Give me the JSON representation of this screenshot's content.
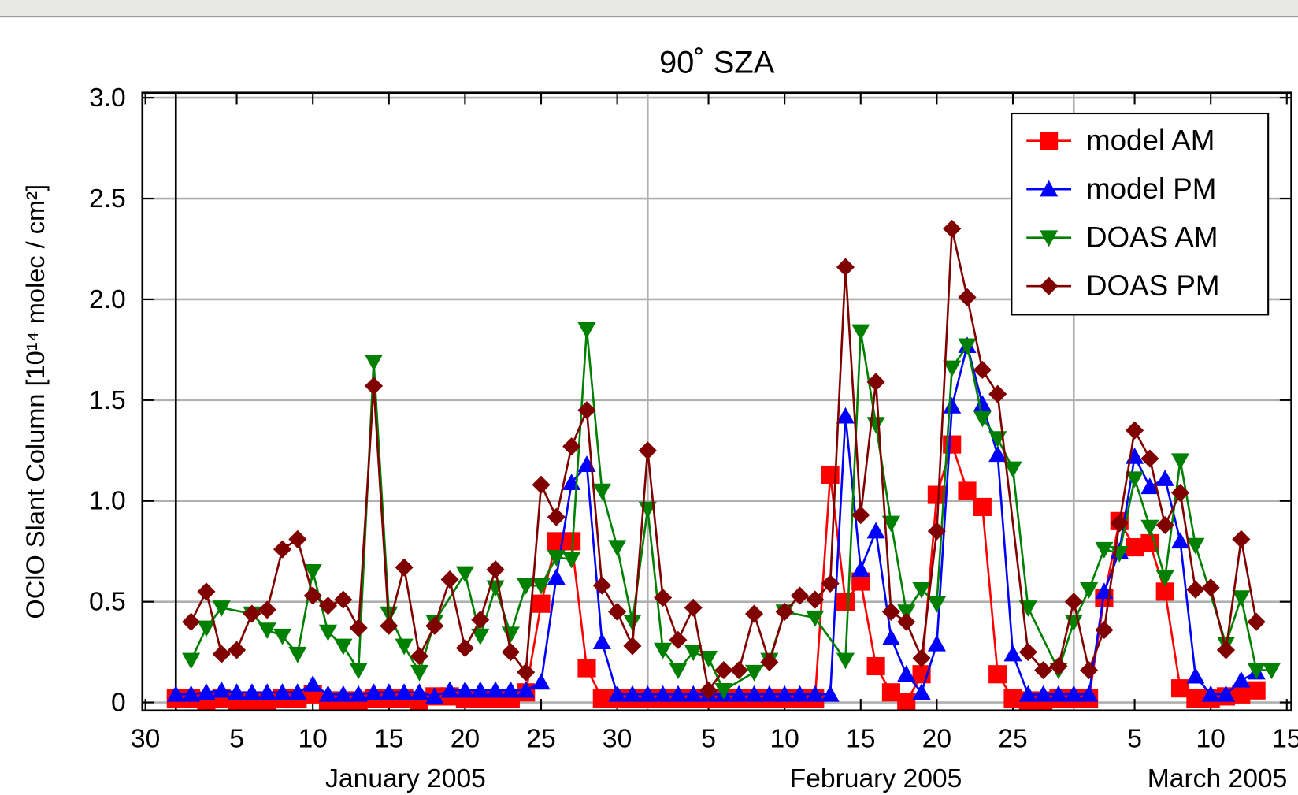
{
  "chart_data": {
    "type": "line",
    "title": "90˚ SZA",
    "y_label": "OClO Slant Column  [10¹⁴ molec / cm²]",
    "x_group_labels": [
      "January 2005",
      "February 2005",
      "March 2005"
    ],
    "xlim": [
      -1.2,
      74.3
    ],
    "ylim": [
      -0.04,
      3.025
    ],
    "xticks": [
      {
        "value": -1,
        "label": "30"
      },
      5,
      10,
      15,
      20,
      25,
      30,
      {
        "value": 36,
        "label": "5"
      },
      {
        "value": 41,
        "label": "10"
      },
      {
        "value": 46,
        "label": "15"
      },
      {
        "value": 51,
        "label": "20"
      },
      {
        "value": 56,
        "label": "25"
      },
      {
        "value": 64,
        "label": "5"
      },
      {
        "value": 69,
        "label": "10"
      },
      {
        "value": 74,
        "label": "15"
      }
    ],
    "yticks": [
      0,
      0.5,
      {
        "value": 1,
        "label": "1.0"
      },
      1.5,
      {
        "value": 2,
        "label": "2.0"
      },
      2.5,
      {
        "value": 3,
        "label": "3.0"
      }
    ],
    "grid": true,
    "x_grid": [
      32,
      60
    ],
    "x_reference_line": 1,
    "legend": "top-right",
    "series": [
      {
        "name": "model AM",
        "color": "#ff0000",
        "marker": "square",
        "x": [
          1,
          2,
          3,
          4,
          5,
          6,
          7,
          8,
          9,
          10,
          11,
          12,
          13,
          14,
          15,
          16,
          17,
          18,
          19,
          20,
          21,
          22,
          23,
          24,
          25,
          26,
          27,
          28,
          29,
          30,
          31,
          32,
          33,
          34,
          35,
          36,
          37,
          38,
          39,
          40,
          41,
          42,
          43,
          44,
          45,
          46,
          47,
          48,
          49,
          50,
          51,
          52,
          53,
          54,
          55,
          56,
          57,
          58,
          59,
          60,
          61,
          62,
          63,
          64,
          65,
          66,
          67,
          68,
          69,
          70,
          71,
          72
        ],
        "values": [
          0.02,
          0.02,
          0.01,
          0.02,
          0.01,
          0.01,
          0.01,
          0.02,
          0.02,
          0.04,
          0.01,
          0.01,
          0.01,
          0.02,
          0.02,
          0.02,
          0.01,
          0.03,
          0.03,
          0.02,
          0.02,
          0.02,
          0.02,
          0.05,
          0.49,
          0.8,
          0.8,
          0.17,
          0.02,
          0.02,
          0.02,
          0.02,
          0.02,
          0.02,
          0.02,
          0.02,
          0.02,
          0.02,
          0.02,
          0.02,
          0.02,
          0.02,
          0.02,
          1.13,
          0.5,
          0.6,
          0.18,
          0.05,
          0.0,
          0.14,
          1.03,
          1.28,
          1.05,
          0.97,
          0.14,
          0.02,
          0.01,
          0.01,
          0.02,
          0.02,
          0.02,
          0.52,
          0.9,
          0.77,
          0.79,
          0.55,
          0.07,
          0.02,
          0.02,
          0.03,
          0.04,
          0.06
        ]
      },
      {
        "name": "model PM",
        "color": "#0000ff",
        "marker": "triangle-up",
        "x": [
          1,
          2,
          3,
          4,
          5,
          6,
          7,
          8,
          9,
          10,
          11,
          12,
          13,
          14,
          15,
          16,
          17,
          18,
          19,
          20,
          21,
          22,
          23,
          24,
          25,
          26,
          27,
          28,
          29,
          30,
          31,
          32,
          33,
          34,
          35,
          36,
          37,
          38,
          39,
          40,
          41,
          42,
          43,
          44,
          45,
          46,
          47,
          48,
          49,
          50,
          51,
          52,
          53,
          54,
          55,
          56,
          57,
          58,
          59,
          60,
          61,
          62,
          63,
          64,
          65,
          66,
          67,
          68,
          69,
          70,
          71,
          72
        ],
        "values": [
          0.04,
          0.04,
          0.05,
          0.06,
          0.05,
          0.05,
          0.05,
          0.05,
          0.05,
          0.09,
          0.04,
          0.04,
          0.04,
          0.05,
          0.05,
          0.05,
          0.05,
          0.03,
          0.06,
          0.06,
          0.06,
          0.06,
          0.06,
          0.06,
          0.1,
          0.62,
          1.09,
          1.18,
          0.3,
          0.04,
          0.04,
          0.04,
          0.04,
          0.04,
          0.04,
          0.04,
          0.04,
          0.04,
          0.04,
          0.04,
          0.04,
          0.04,
          0.04,
          0.04,
          1.42,
          0.66,
          0.85,
          0.32,
          0.14,
          0.05,
          0.29,
          1.47,
          1.77,
          1.48,
          1.23,
          0.24,
          0.04,
          0.04,
          0.04,
          0.04,
          0.04,
          0.55,
          0.75,
          1.22,
          1.07,
          1.11,
          0.8,
          0.13,
          0.04,
          0.04,
          0.11,
          0.15
        ]
      },
      {
        "name": "DOAS AM",
        "color": "#008000",
        "marker": "triangle-down",
        "x": [
          2,
          3,
          4,
          6,
          7,
          8,
          9,
          10,
          11,
          12,
          13,
          14,
          15,
          16,
          17,
          18,
          20,
          21,
          22,
          23,
          24,
          25,
          26,
          27,
          28,
          29,
          30,
          31,
          32,
          33,
          34,
          35,
          36,
          37,
          39,
          40,
          41,
          43,
          45,
          46,
          47,
          48,
          49,
          50,
          51,
          52,
          53,
          54,
          55,
          56,
          57,
          59,
          60,
          61,
          62,
          63,
          64,
          65,
          66,
          67,
          68,
          70,
          71,
          72,
          73
        ],
        "values": [
          0.21,
          0.37,
          0.47,
          0.44,
          0.36,
          0.33,
          0.24,
          0.65,
          0.35,
          0.28,
          0.16,
          1.69,
          0.44,
          0.28,
          0.15,
          0.4,
          0.64,
          0.33,
          0.57,
          0.34,
          0.58,
          0.58,
          0.72,
          0.71,
          1.85,
          1.05,
          0.77,
          0.4,
          0.96,
          0.26,
          0.16,
          0.25,
          0.22,
          0.06,
          0.15,
          0.21,
          0.45,
          0.42,
          0.21,
          1.84,
          1.38,
          0.89,
          0.45,
          0.56,
          0.49,
          1.66,
          1.77,
          1.41,
          1.31,
          1.16,
          0.47,
          0.16,
          0.4,
          0.56,
          0.76,
          0.74,
          1.11,
          0.87,
          0.62,
          1.2,
          0.78,
          0.29,
          0.52,
          0.16,
          0.16
        ]
      },
      {
        "name": "DOAS PM",
        "color": "#800000",
        "marker": "diamond",
        "x": [
          2,
          3,
          4,
          5,
          6,
          7,
          8,
          9,
          10,
          11,
          12,
          13,
          14,
          15,
          16,
          17,
          18,
          19,
          20,
          21,
          22,
          23,
          24,
          25,
          26,
          27,
          28,
          29,
          30,
          31,
          32,
          33,
          34,
          35,
          36,
          37,
          38,
          39,
          40,
          41,
          42,
          43,
          44,
          45,
          46,
          47,
          48,
          49,
          50,
          51,
          52,
          53,
          54,
          55,
          57,
          58,
          59,
          60,
          61,
          62,
          63,
          64,
          65,
          66,
          67,
          68,
          69,
          70,
          71,
          72
        ],
        "values": [
          0.4,
          0.55,
          0.24,
          0.26,
          0.44,
          0.46,
          0.76,
          0.81,
          0.53,
          0.48,
          0.51,
          0.37,
          1.57,
          0.38,
          0.67,
          0.23,
          0.38,
          0.61,
          0.27,
          0.41,
          0.66,
          0.25,
          0.15,
          1.08,
          0.92,
          1.27,
          1.45,
          0.58,
          0.45,
          0.28,
          1.25,
          0.52,
          0.31,
          0.47,
          0.06,
          0.16,
          0.16,
          0.44,
          0.2,
          0.45,
          0.53,
          0.51,
          0.59,
          2.16,
          0.93,
          1.59,
          0.45,
          0.4,
          0.22,
          0.85,
          2.35,
          2.01,
          1.65,
          1.53,
          0.25,
          0.16,
          0.18,
          0.5,
          0.16,
          0.36,
          0.89,
          1.35,
          1.21,
          0.88,
          1.04,
          0.56,
          0.57,
          0.26,
          0.81,
          0.4
        ]
      }
    ]
  }
}
